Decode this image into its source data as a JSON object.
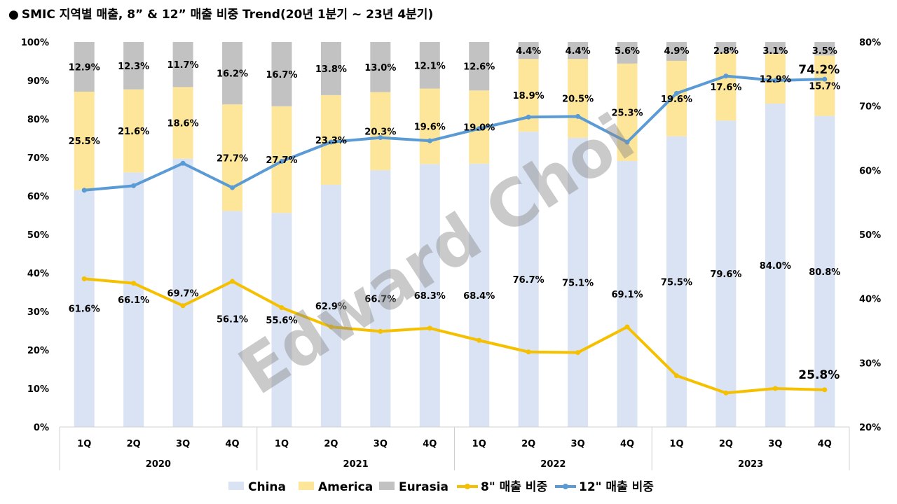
{
  "title": "SMIC 지역별 매출, 8” & 12” 매출 비중 Trend(20년 1분기 ~ 23년 4분기)",
  "title_bullet": "●",
  "watermark": "Edward Choi",
  "chart_data": {
    "type": "bar",
    "stacked": true,
    "quarters": [
      "1Q",
      "2Q",
      "3Q",
      "4Q",
      "1Q",
      "2Q",
      "3Q",
      "4Q",
      "1Q",
      "2Q",
      "3Q",
      "4Q",
      "1Q",
      "2Q",
      "3Q",
      "4Q"
    ],
    "years": [
      "2020",
      "2021",
      "2022",
      "2023"
    ],
    "left_axis": {
      "ticks": [
        "0%",
        "10%",
        "20%",
        "30%",
        "40%",
        "50%",
        "60%",
        "70%",
        "80%",
        "90%",
        "100%"
      ],
      "range": [
        0,
        100
      ]
    },
    "right_axis": {
      "ticks": [
        "20%",
        "30%",
        "40%",
        "50%",
        "60%",
        "70%",
        "80%"
      ],
      "range": [
        20,
        80
      ]
    },
    "series": [
      {
        "name": "China",
        "kind": "bar",
        "color": "#dae3f3",
        "values": [
          61.6,
          66.1,
          69.7,
          56.1,
          55.6,
          62.9,
          66.7,
          68.3,
          68.4,
          76.7,
          75.1,
          69.1,
          75.5,
          79.6,
          84.0,
          80.8
        ],
        "labels": [
          "61.6%",
          "66.1%",
          "69.7%",
          "56.1%",
          "55.6%",
          "62.9%",
          "66.7%",
          "68.3%",
          "68.4%",
          "76.7%",
          "75.1%",
          "69.1%",
          "75.5%",
          "79.6%",
          "84.0%",
          "80.8%"
        ]
      },
      {
        "name": "America",
        "kind": "bar",
        "color": "#fde699",
        "values": [
          25.5,
          21.6,
          18.6,
          27.7,
          27.7,
          23.3,
          20.3,
          19.6,
          19.0,
          18.9,
          20.5,
          25.3,
          19.6,
          17.6,
          12.9,
          15.7
        ],
        "labels": [
          "25.5%",
          "21.6%",
          "18.6%",
          "27.7%",
          "27.7%",
          "23.3%",
          "20.3%",
          "19.6%",
          "19.0%",
          "18.9%",
          "20.5%",
          "25.3%",
          "19.6%",
          "17.6%",
          "12.9%",
          "15.7%"
        ]
      },
      {
        "name": "Eurasia",
        "kind": "bar",
        "color": "#c2c2c2",
        "values": [
          12.9,
          12.3,
          11.7,
          16.2,
          16.7,
          13.8,
          13.0,
          12.1,
          12.6,
          4.4,
          4.4,
          5.6,
          4.9,
          2.8,
          3.1,
          3.5
        ],
        "labels": [
          "12.9%",
          "12.3%",
          "11.7%",
          "16.2%",
          "16.7%",
          "13.8%",
          "13.0%",
          "12.1%",
          "12.6%",
          "4.4%",
          "4.4%",
          "5.6%",
          "4.9%",
          "2.8%",
          "3.1%",
          "3.5%"
        ]
      },
      {
        "name": "8\" 매출 비중",
        "kind": "line",
        "axis": "right",
        "color": "#f5c000",
        "values": [
          43.1,
          42.4,
          38.9,
          42.7,
          38.6,
          35.6,
          34.9,
          35.4,
          33.5,
          31.7,
          31.6,
          35.6,
          28.0,
          25.3,
          26.0,
          25.8
        ],
        "end_label": "25.8%"
      },
      {
        "name": "12\" 매출 비중",
        "kind": "line",
        "axis": "right",
        "color": "#5b9bd5",
        "values": [
          56.9,
          57.6,
          61.1,
          57.3,
          61.4,
          64.4,
          65.1,
          64.6,
          66.5,
          68.3,
          68.4,
          64.4,
          72.0,
          74.7,
          74.0,
          74.2
        ],
        "end_label": "74.2%"
      }
    ],
    "legend_position": "bottom"
  }
}
